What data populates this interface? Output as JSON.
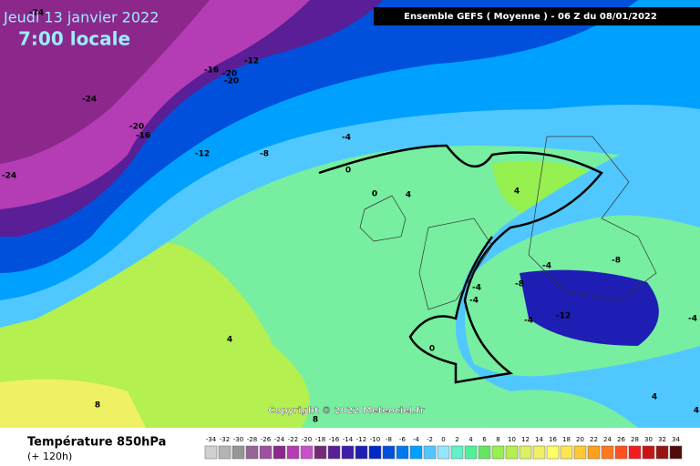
{
  "header": {
    "title": "Jeudi 13 janvier 2022",
    "time": "7:00 locale",
    "run": "Ensemble GEFS  ( Moyenne )  -  06 Z du 08/01/2022"
  },
  "contour_labels": [
    "-24",
    "-16",
    "-20",
    "-12",
    "-20",
    "-24",
    "-20",
    "-16",
    "-12",
    "-8",
    "-4",
    "0",
    "-24",
    "0",
    "4",
    "4",
    "-4",
    "-8",
    "-4",
    "-4",
    "-8",
    "-4",
    "-12",
    "-4",
    "0",
    "4",
    "8",
    "4",
    "8",
    "4"
  ],
  "copyright": "Copyright © 2022 Meteociel.fr",
  "footer": {
    "variable": "Température 850hPa",
    "lead": "(+ 120h)"
  },
  "legend": {
    "ticks": [
      -34,
      -32,
      -30,
      -28,
      -26,
      -24,
      -22,
      -20,
      -18,
      -16,
      -14,
      -12,
      -10,
      -8,
      -6,
      -4,
      -2,
      0,
      2,
      4,
      6,
      8,
      10,
      12,
      14,
      16,
      18,
      20,
      22,
      24,
      26,
      28,
      30,
      32,
      34
    ],
    "colors": [
      "#d0d0d0",
      "#b4b4b4",
      "#969696",
      "#966496",
      "#a050a0",
      "#8c288c",
      "#b43cb4",
      "#c850c8",
      "#782878",
      "#5a1e96",
      "#3c1eaa",
      "#1e1eb4",
      "#0028c8",
      "#0050dc",
      "#0078f0",
      "#00a0ff",
      "#50c8ff",
      "#96e6ff",
      "#64f0c8",
      "#50f096",
      "#64e664",
      "#96f050",
      "#b4f050",
      "#dcf064",
      "#f0f064",
      "#ffff64",
      "#ffe650",
      "#ffc832",
      "#ffa01e",
      "#ff781e",
      "#ff501e",
      "#f01e1e",
      "#c81414",
      "#961414",
      "#500a0a"
    ]
  }
}
